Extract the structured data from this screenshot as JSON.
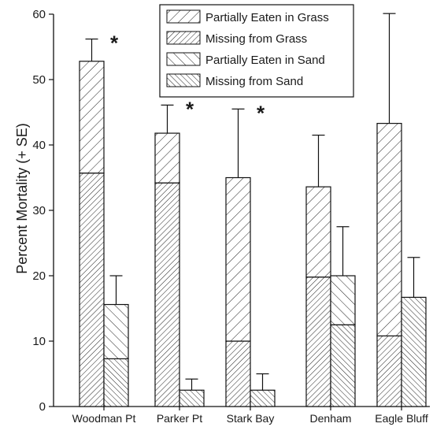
{
  "chart_data": {
    "type": "bar",
    "subtype": "stacked grouped bar with error bars",
    "title": "",
    "xlabel": "",
    "ylabel": "Percent Mortality (+ SE)",
    "ylim": [
      0,
      60
    ],
    "yticks": [
      0,
      10,
      20,
      30,
      40,
      50,
      60
    ],
    "grid": false,
    "legend_position": "top-right",
    "categories": [
      "Woodman Pt",
      "Parker Pt",
      "Stark Bay",
      "Denham",
      "Eagle Bluff"
    ],
    "habitats": [
      "Grass",
      "Sand"
    ],
    "series": [
      {
        "name": "Partially Eaten in Grass",
        "habitat": "Grass",
        "component": "partially_eaten",
        "pattern": "diag-down-sparse",
        "values": [
          17.1,
          7.6,
          25.0,
          13.8,
          32.5
        ]
      },
      {
        "name": "Missing from Grass",
        "habitat": "Grass",
        "component": "missing",
        "pattern": "diag-down-dense",
        "values": [
          35.7,
          34.2,
          10.0,
          19.8,
          10.8
        ]
      },
      {
        "name": "Partially Eaten in Sand",
        "habitat": "Sand",
        "component": "partially_eaten",
        "pattern": "diag-up-sparse",
        "values": [
          8.3,
          0,
          0,
          7.5,
          0
        ]
      },
      {
        "name": "Missing from Sand",
        "habitat": "Sand",
        "component": "missing",
        "pattern": "diag-up-dense",
        "values": [
          7.3,
          2.5,
          2.5,
          12.5,
          16.7
        ]
      }
    ],
    "totals": {
      "Grass": [
        52.8,
        41.8,
        35.0,
        33.6,
        43.3
      ],
      "Sand": [
        15.6,
        2.5,
        2.5,
        20.0,
        16.7
      ]
    },
    "error_bar_tops": {
      "Grass": [
        56.2,
        46.1,
        45.5,
        41.5,
        60.1
      ],
      "Sand": [
        20.0,
        4.2,
        5.0,
        27.5,
        22.8
      ]
    },
    "significance_marker": "*",
    "significant_categories": [
      "Woodman Pt",
      "Parker Pt",
      "Stark Bay"
    ]
  }
}
